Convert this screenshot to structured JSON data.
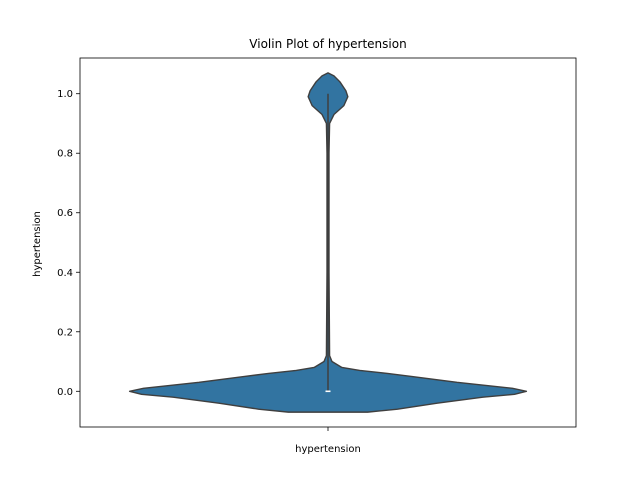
{
  "chart_data": {
    "type": "violin",
    "title": "Violin Plot of hypertension",
    "xlabel": "",
    "ylabel": "hypertension",
    "categories": [
      "hypertension"
    ],
    "ylim": [
      -0.12,
      1.12
    ],
    "yticks": [
      0.0,
      0.2,
      0.4,
      0.6,
      0.8,
      1.0
    ],
    "ytick_labels": [
      "0.0",
      "0.2",
      "0.4",
      "0.6",
      "0.8",
      "1.0"
    ],
    "grid": false,
    "colors": {
      "fill": "#3274a1",
      "edge": "#3f3f3f",
      "median": "#ffffff"
    },
    "series": [
      {
        "category": "hypertension",
        "values_summary": {
          "min": 0,
          "q1": 0,
          "median": 0,
          "q3": 0,
          "max": 1
        },
        "density_profile": [
          {
            "y": -0.07,
            "w": 0.0
          },
          {
            "y": -0.07,
            "w": 0.2
          },
          {
            "y": -0.06,
            "w": 0.35
          },
          {
            "y": -0.04,
            "w": 0.55
          },
          {
            "y": -0.02,
            "w": 0.78
          },
          {
            "y": -0.01,
            "w": 0.94
          },
          {
            "y": 0.0,
            "w": 1.0
          },
          {
            "y": 0.01,
            "w": 0.93
          },
          {
            "y": 0.03,
            "w": 0.65
          },
          {
            "y": 0.05,
            "w": 0.42
          },
          {
            "y": 0.06,
            "w": 0.3
          },
          {
            "y": 0.07,
            "w": 0.16
          },
          {
            "y": 0.08,
            "w": 0.07
          },
          {
            "y": 0.1,
            "w": 0.02
          },
          {
            "y": 0.12,
            "w": 0.008
          },
          {
            "y": 0.4,
            "w": 0.005
          },
          {
            "y": 0.8,
            "w": 0.005
          },
          {
            "y": 0.9,
            "w": 0.008
          },
          {
            "y": 0.93,
            "w": 0.03
          },
          {
            "y": 0.96,
            "w": 0.08
          },
          {
            "y": 0.99,
            "w": 0.1
          },
          {
            "y": 1.01,
            "w": 0.09
          },
          {
            "y": 1.04,
            "w": 0.06
          },
          {
            "y": 1.06,
            "w": 0.03
          },
          {
            "y": 1.07,
            "w": 0.0
          }
        ]
      }
    ]
  }
}
